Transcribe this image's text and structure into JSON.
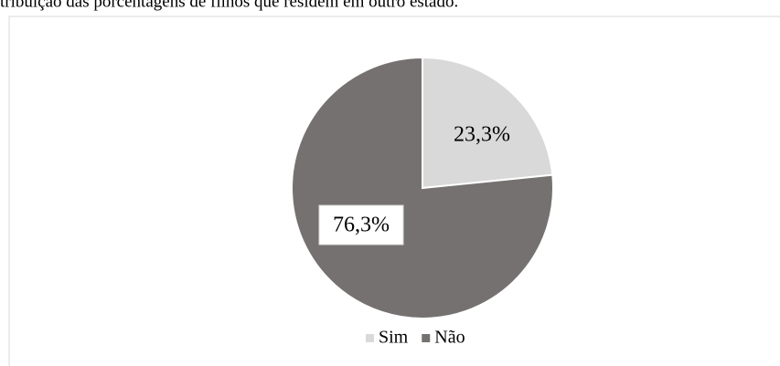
{
  "chart_data": {
    "type": "pie",
    "title": "tribuição das porcentagens de filhos que residem em outro estado.",
    "categories": [
      "Sim",
      "Não"
    ],
    "values": [
      23.3,
      76.3
    ],
    "value_labels": [
      "23,3%",
      "76,3%"
    ],
    "colors": [
      "#d9d9d9",
      "#767171"
    ],
    "legend": "bottom"
  }
}
